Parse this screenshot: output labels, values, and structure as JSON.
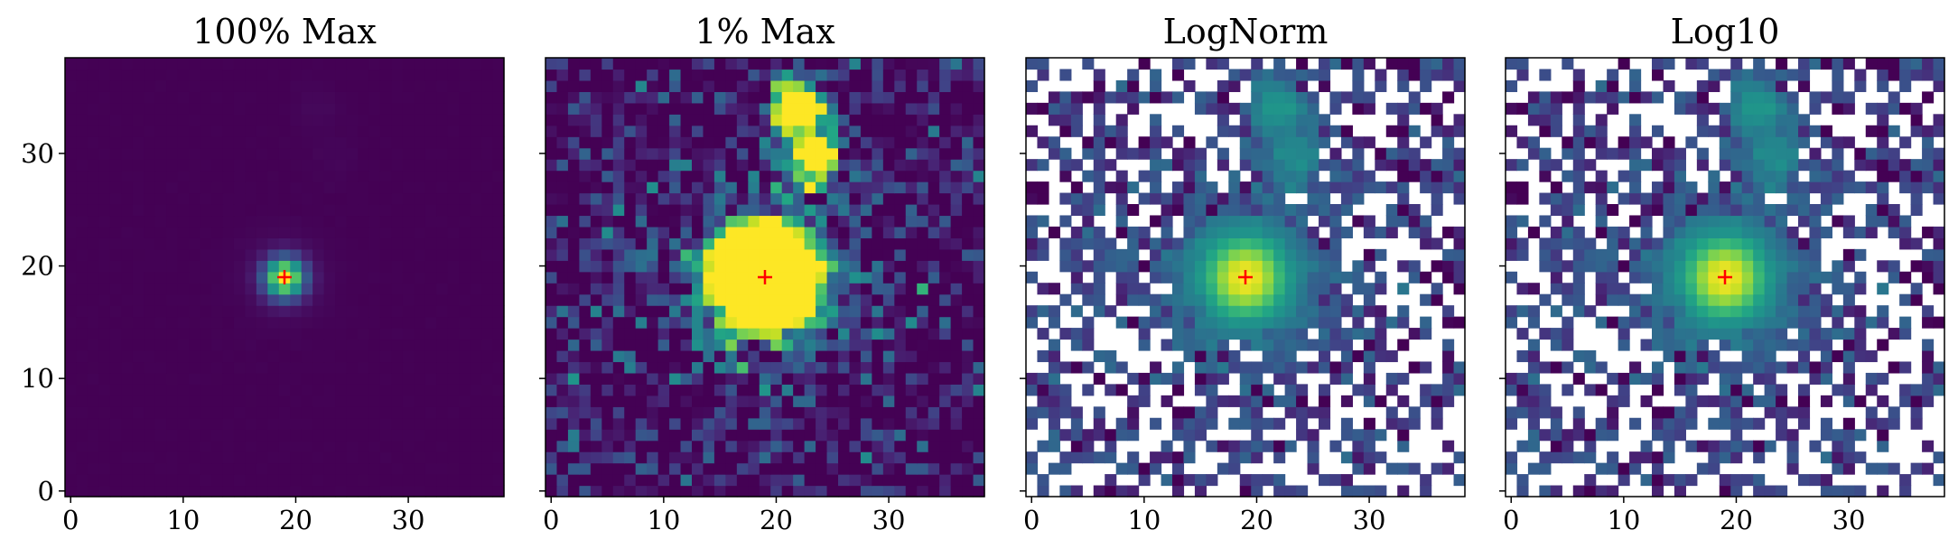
{
  "chart_data": {
    "type": "heatmap",
    "grid_size": 39,
    "x_ticks": [
      0,
      10,
      20,
      30
    ],
    "y_ticks": [
      0,
      10,
      20,
      30
    ],
    "xlim": [
      -0.5,
      38.5
    ],
    "ylim": [
      -0.5,
      38.5
    ],
    "colormap": "viridis",
    "marker": {
      "x": 19,
      "y": 19,
      "symbol": "+",
      "color": "#ff0000"
    },
    "panels": [
      {
        "title": "100% Max",
        "mode": "linear",
        "vmax_fraction": 1.0,
        "show_yticklabels": true
      },
      {
        "title": "1% Max",
        "mode": "linear",
        "vmax_fraction": 0.01,
        "show_yticklabels": false
      },
      {
        "title": "LogNorm",
        "mode": "log",
        "show_yticklabels": false
      },
      {
        "title": "Log10",
        "mode": "log",
        "show_yticklabels": false
      }
    ],
    "sources": [
      {
        "x": 19,
        "y": 19,
        "peak": 1.0,
        "sigma": 1.2
      },
      {
        "x": 19,
        "y": 19,
        "peak": 0.045,
        "sigma": 2.6
      },
      {
        "x": 19,
        "y": 19,
        "peak": 0.004,
        "sigma": 6.0
      },
      {
        "x": 22,
        "y": 34,
        "peak": 0.02,
        "sigma": 1.6
      },
      {
        "x": 23.5,
        "y": 29.5,
        "peak": 0.015,
        "sigma": 1.5
      }
    ],
    "noise_level": 0.002
  }
}
